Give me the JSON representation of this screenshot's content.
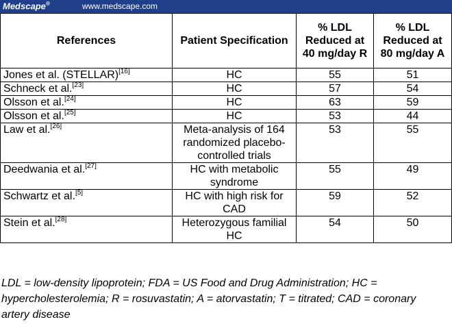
{
  "banner": {
    "brand": "Medscape",
    "brand_mark": "®",
    "url": "www.medscape.com"
  },
  "headers": [
    "References",
    "Patient Specification",
    "% LDL Reduced at 40 mg/day R",
    "% LDL Reduced at 80 mg/day A"
  ],
  "rows": [
    {
      "ref": "Jones et al. (STELLAR)",
      "cite": "[16]",
      "spec": "HC",
      "r": "55",
      "a": "51"
    },
    {
      "ref": "Schneck et al.",
      "cite": "[23]",
      "spec": "HC",
      "r": "57",
      "a": "54"
    },
    {
      "ref": "Olsson et al.",
      "cite": "[24]",
      "spec": "HC",
      "r": "63",
      "a": "59"
    },
    {
      "ref": "Olsson et al.",
      "cite": "[25]",
      "spec": "HC",
      "r": "53",
      "a": "44"
    },
    {
      "ref": "Law et al.",
      "cite": "[26]",
      "spec": "Meta-analysis of 164 randomized placebo-controlled trials",
      "r": "53",
      "a": "55"
    },
    {
      "ref": "Deedwania et al.",
      "cite": "[27]",
      "spec": "HC with metabolic syndrome",
      "r": "55",
      "a": "49"
    },
    {
      "ref": "Schwartz et al.",
      "cite": "[5]",
      "spec": "HC with high risk for CAD",
      "r": "59",
      "a": "52"
    },
    {
      "ref": "Stein et al.",
      "cite": "[28]",
      "spec": "Heterozygous familial HC",
      "r": "54",
      "a": "50"
    }
  ],
  "footnote": "LDL = low-density lipoprotein; FDA = US Food and Drug Administration; HC = hypercholesterolemia; R = rosuvastatin; A = atorvastatin; T = titrated; CAD = coronary artery disease",
  "colors": {
    "banner_bg": "#1f3f8a",
    "banner_text": "#ffffff"
  }
}
